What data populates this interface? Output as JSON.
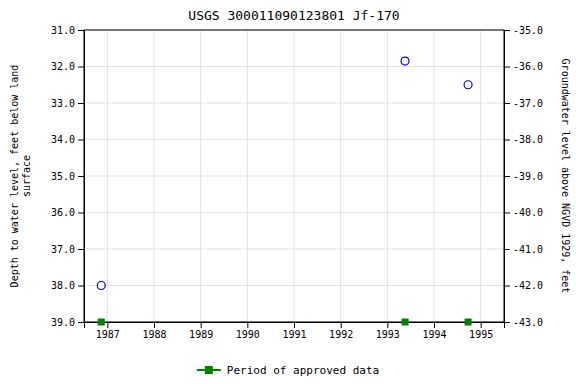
{
  "chart_data": {
    "type": "scatter",
    "title": "USGS 300011090123801 Jf-170",
    "x": [
      1986.87,
      1993.38,
      1994.73
    ],
    "series": [
      {
        "color": "#0000cc",
        "marker": "circle",
        "values": [
          38.0,
          31.85,
          32.5
        ]
      },
      {
        "name": "Period of approved data",
        "color": "#008000",
        "marker": "square",
        "values": [
          39.0,
          39.0,
          39.0
        ]
      }
    ],
    "xlim": [
      1986.5,
      1995.5
    ],
    "xticks": [
      1987,
      1988,
      1989,
      1990,
      1991,
      1992,
      1993,
      1994,
      1995
    ],
    "ylim": [
      39.0,
      31.0
    ],
    "yticks": [
      {
        "value": 31,
        "label": "31.0"
      },
      {
        "value": 32,
        "label": "32.0"
      },
      {
        "value": 33,
        "label": "33.0"
      },
      {
        "value": 34,
        "label": "34.0"
      },
      {
        "value": 35,
        "label": "35.0"
      },
      {
        "value": 36,
        "label": "36.0"
      },
      {
        "value": 37,
        "label": "37.0"
      },
      {
        "value": 38,
        "label": "38.0"
      },
      {
        "value": 39,
        "label": "39.0"
      }
    ],
    "y2lim": [
      -43.0,
      -35.0
    ],
    "y2ticks": [
      {
        "value": -35,
        "label": "-35.0"
      },
      {
        "value": -36,
        "label": "-36.0"
      },
      {
        "value": -37,
        "label": "-37.0"
      },
      {
        "value": -38,
        "label": "-38.0"
      },
      {
        "value": -39,
        "label": "-39.0"
      },
      {
        "value": -40,
        "label": "-40.0"
      },
      {
        "value": -41,
        "label": "-41.0"
      },
      {
        "value": -42,
        "label": "-42.0"
      },
      {
        "value": -43,
        "label": "-43.0"
      }
    ],
    "ylabel": "Depth to water level, feet below land\nsurface",
    "y2label": "Groundwater level above NGVD 1929, feet",
    "grid": true,
    "legend": "bottom"
  }
}
